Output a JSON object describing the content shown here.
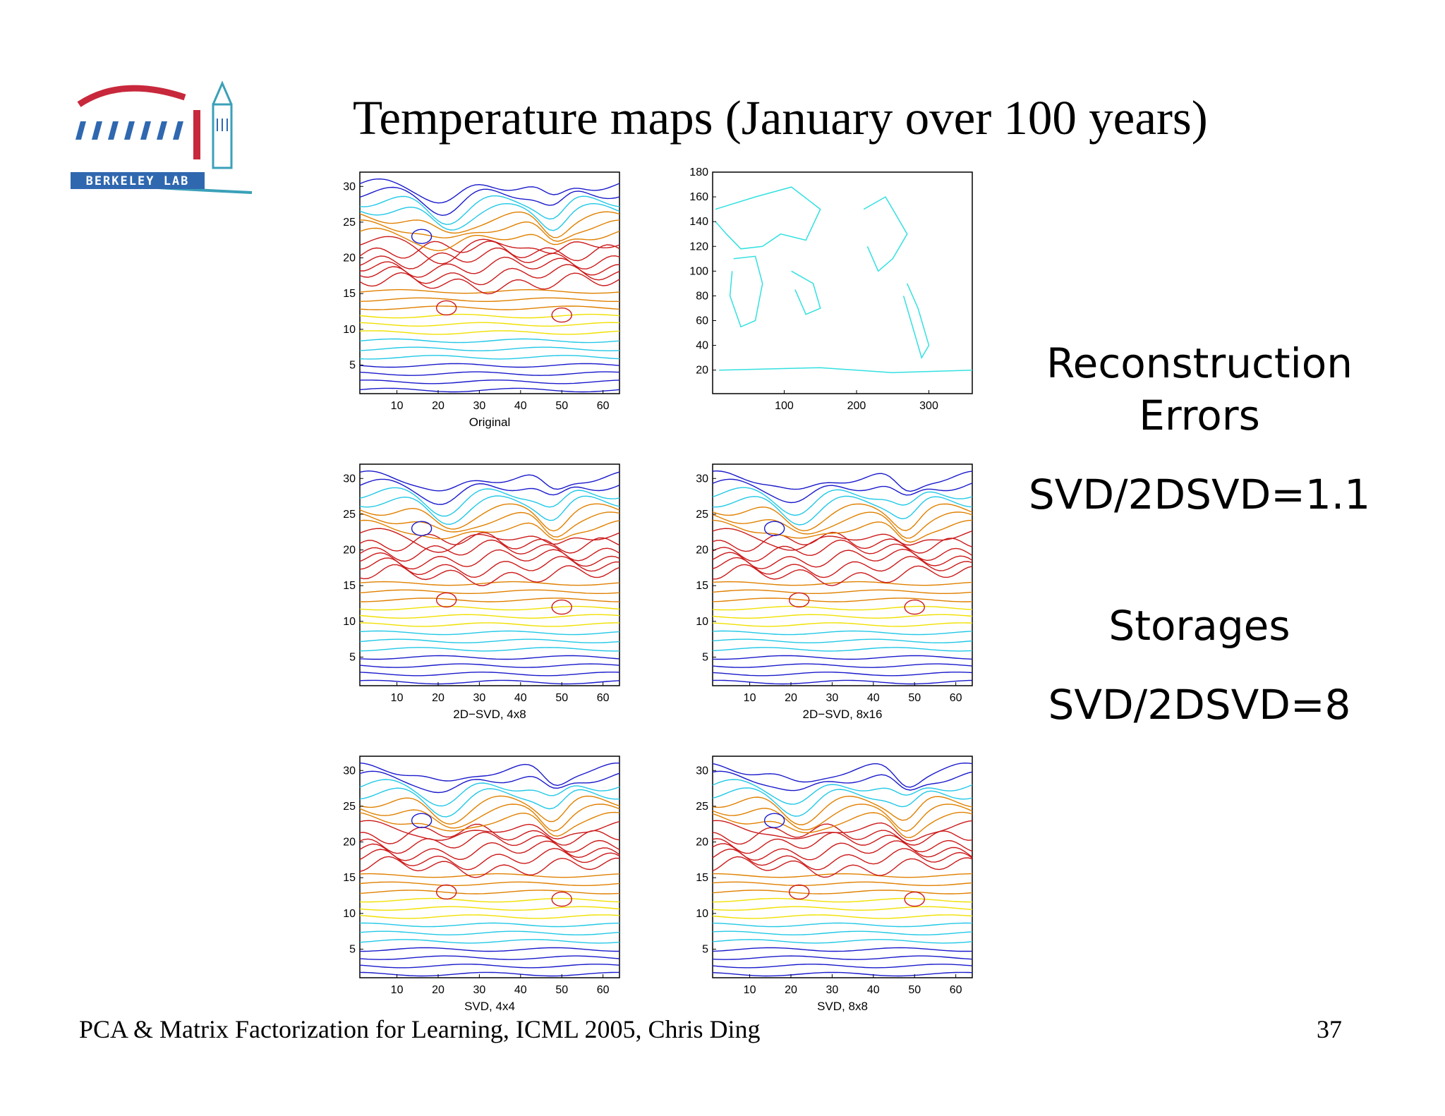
{
  "logo": {
    "text": "BERKELEY LAB"
  },
  "title": "Temperature maps (January over 100 years)",
  "panels": [
    {
      "id": "original",
      "caption": "Original",
      "x_ticks": [
        "10",
        "20",
        "30",
        "40",
        "50",
        "60"
      ],
      "y_ticks": [
        "5",
        "10",
        "15",
        "20",
        "25",
        "30"
      ]
    },
    {
      "id": "world",
      "caption": "",
      "x_ticks": [
        "100",
        "200",
        "300"
      ],
      "y_ticks": [
        "20",
        "40",
        "60",
        "80",
        "100",
        "120",
        "140",
        "160",
        "180"
      ]
    },
    {
      "id": "svd2d-4x8",
      "caption": "2D−SVD, 4x8",
      "x_ticks": [
        "10",
        "20",
        "30",
        "40",
        "50",
        "60"
      ],
      "y_ticks": [
        "5",
        "10",
        "15",
        "20",
        "25",
        "30"
      ]
    },
    {
      "id": "svd2d-8x16",
      "caption": "2D−SVD, 8x16",
      "x_ticks": [
        "10",
        "20",
        "30",
        "40",
        "50",
        "60"
      ],
      "y_ticks": [
        "5",
        "10",
        "15",
        "20",
        "25",
        "30"
      ]
    },
    {
      "id": "svd-4x4",
      "caption": "SVD, 4x4",
      "x_ticks": [
        "10",
        "20",
        "30",
        "40",
        "50",
        "60"
      ],
      "y_ticks": [
        "5",
        "10",
        "15",
        "20",
        "25",
        "30"
      ]
    },
    {
      "id": "svd-8x8",
      "caption": "SVD, 8x8",
      "x_ticks": [
        "10",
        "20",
        "30",
        "40",
        "50",
        "60"
      ],
      "y_ticks": [
        "5",
        "10",
        "15",
        "20",
        "25",
        "30"
      ]
    }
  ],
  "side": {
    "recon_line1": "Reconstruction",
    "recon_line2": "Errors",
    "recon_value": "SVD/2DSVD=1.1",
    "storage_label": "Storages",
    "storage_value": "SVD/2DSVD=8"
  },
  "footer": "PCA & Matrix Factorization for Learning, ICML 2005, Chris Ding",
  "page_number": "37",
  "colors": {
    "contour_cold": "#1a1acc",
    "contour_cool": "#22c8e6",
    "contour_mild": "#f0e000",
    "contour_warm": "#e08000",
    "contour_hot": "#cc1a1a",
    "map_coast": "#33e0e0",
    "logo_red": "#c8283c",
    "logo_blue": "#3068b0"
  },
  "chart_data": [
    {
      "type": "contour",
      "caption": "Original",
      "xlim": [
        1,
        64
      ],
      "ylim": [
        1,
        32
      ]
    },
    {
      "type": "line",
      "caption": "",
      "xlim": [
        1,
        360
      ],
      "ylim": [
        1,
        180
      ]
    },
    {
      "type": "contour",
      "caption": "2D−SVD, 4x8",
      "xlim": [
        1,
        64
      ],
      "ylim": [
        1,
        32
      ]
    },
    {
      "type": "contour",
      "caption": "2D−SVD, 8x16",
      "xlim": [
        1,
        64
      ],
      "ylim": [
        1,
        32
      ]
    },
    {
      "type": "contour",
      "caption": "SVD, 4x4",
      "xlim": [
        1,
        64
      ],
      "ylim": [
        1,
        32
      ]
    },
    {
      "type": "contour",
      "caption": "SVD, 8x8",
      "xlim": [
        1,
        64
      ],
      "ylim": [
        1,
        32
      ]
    }
  ]
}
